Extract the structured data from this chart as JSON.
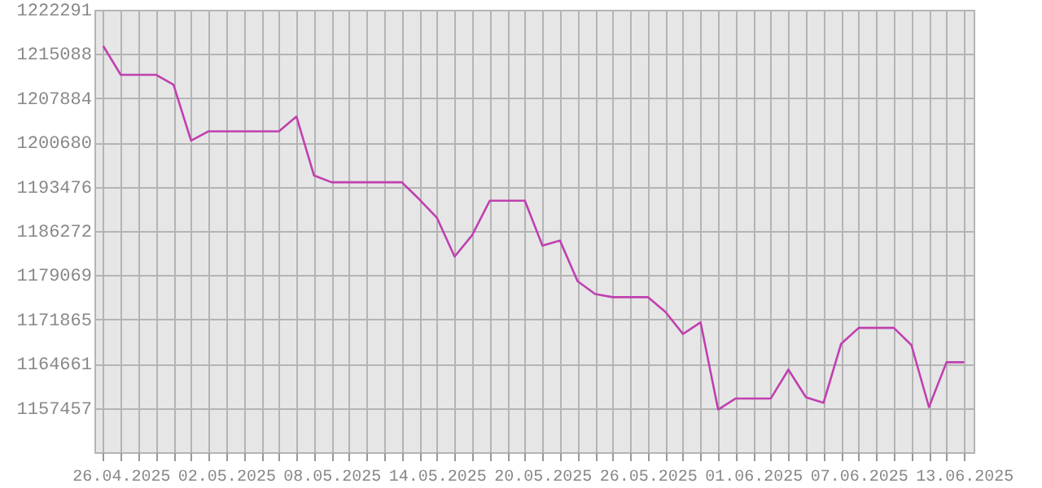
{
  "chart_data": {
    "type": "line",
    "x": [
      "2025-04-25",
      "2025-04-26",
      "2025-04-27",
      "2025-04-28",
      "2025-04-29",
      "2025-04-30",
      "2025-05-01",
      "2025-05-02",
      "2025-05-03",
      "2025-05-04",
      "2025-05-05",
      "2025-05-06",
      "2025-05-07",
      "2025-05-08",
      "2025-05-09",
      "2025-05-10",
      "2025-05-11",
      "2025-05-12",
      "2025-05-13",
      "2025-05-14",
      "2025-05-15",
      "2025-05-16",
      "2025-05-17",
      "2025-05-18",
      "2025-05-19",
      "2025-05-20",
      "2025-05-21",
      "2025-05-22",
      "2025-05-23",
      "2025-05-24",
      "2025-05-25",
      "2025-05-26",
      "2025-05-27",
      "2025-05-28",
      "2025-05-29",
      "2025-05-30",
      "2025-05-31",
      "2025-06-01",
      "2025-06-02",
      "2025-06-03",
      "2025-06-04",
      "2025-06-05",
      "2025-06-06",
      "2025-06-07",
      "2025-06-08",
      "2025-06-09",
      "2025-06-10",
      "2025-06-11",
      "2025-06-12",
      "2025-06-13"
    ],
    "series": [
      {
        "color": "#c040b0",
        "values": [
          1216400,
          1211700,
          1211700,
          1211700,
          1210100,
          1201000,
          1202500,
          1202500,
          1202500,
          1202500,
          1202500,
          1204900,
          1195300,
          1194200,
          1194200,
          1194200,
          1194200,
          1194200,
          1191400,
          1188400,
          1182100,
          1185600,
          1191200,
          1191200,
          1191200,
          1183900,
          1184700,
          1178100,
          1176000,
          1175500,
          1175500,
          1175500,
          1173100,
          1169500,
          1171400,
          1157200,
          1159000,
          1159000,
          1159000,
          1163700,
          1159200,
          1158300,
          1167900,
          1170500,
          1170500,
          1170500,
          1167700,
          1157600,
          1164900,
          1164900
        ]
      }
    ],
    "xlim": [
      "2025-04-24T12:00",
      "2025-06-13T13:00"
    ],
    "xticks": [
      {
        "value": "2025-04-25",
        "label": null
      },
      {
        "value": "2025-04-26",
        "label": "26.04.2025"
      },
      {
        "value": "2025-04-27",
        "label": null
      },
      {
        "value": "2025-04-28",
        "label": null
      },
      {
        "value": "2025-04-29",
        "label": null
      },
      {
        "value": "2025-04-30",
        "label": null
      },
      {
        "value": "2025-05-01",
        "label": null
      },
      {
        "value": "2025-05-02",
        "label": "02.05.2025"
      },
      {
        "value": "2025-05-03",
        "label": null
      },
      {
        "value": "2025-05-04",
        "label": null
      },
      {
        "value": "2025-05-05",
        "label": null
      },
      {
        "value": "2025-05-06",
        "label": null
      },
      {
        "value": "2025-05-07",
        "label": null
      },
      {
        "value": "2025-05-08",
        "label": "08.05.2025"
      },
      {
        "value": "2025-05-09",
        "label": null
      },
      {
        "value": "2025-05-10",
        "label": null
      },
      {
        "value": "2025-05-11",
        "label": null
      },
      {
        "value": "2025-05-12",
        "label": null
      },
      {
        "value": "2025-05-13",
        "label": null
      },
      {
        "value": "2025-05-14",
        "label": "14.05.2025"
      },
      {
        "value": "2025-05-15",
        "label": null
      },
      {
        "value": "2025-05-16",
        "label": null
      },
      {
        "value": "2025-05-17",
        "label": null
      },
      {
        "value": "2025-05-18",
        "label": null
      },
      {
        "value": "2025-05-19",
        "label": null
      },
      {
        "value": "2025-05-20",
        "label": "20.05.2025"
      },
      {
        "value": "2025-05-21",
        "label": null
      },
      {
        "value": "2025-05-22",
        "label": null
      },
      {
        "value": "2025-05-23",
        "label": null
      },
      {
        "value": "2025-05-24",
        "label": null
      },
      {
        "value": "2025-05-25",
        "label": null
      },
      {
        "value": "2025-05-26",
        "label": "26.05.2025"
      },
      {
        "value": "2025-05-27",
        "label": null
      },
      {
        "value": "2025-05-28",
        "label": null
      },
      {
        "value": "2025-05-29",
        "label": null
      },
      {
        "value": "2025-05-30",
        "label": null
      },
      {
        "value": "2025-05-31",
        "label": null
      },
      {
        "value": "2025-06-01",
        "label": "01.06.2025"
      },
      {
        "value": "2025-06-02",
        "label": null
      },
      {
        "value": "2025-06-03",
        "label": null
      },
      {
        "value": "2025-06-04",
        "label": null
      },
      {
        "value": "2025-06-05",
        "label": null
      },
      {
        "value": "2025-06-06",
        "label": null
      },
      {
        "value": "2025-06-07",
        "label": "07.06.2025"
      },
      {
        "value": "2025-06-08",
        "label": null
      },
      {
        "value": "2025-06-09",
        "label": null
      },
      {
        "value": "2025-06-10",
        "label": null
      },
      {
        "value": "2025-06-11",
        "label": null
      },
      {
        "value": "2025-06-12",
        "label": null
      },
      {
        "value": "2025-06-13",
        "label": "13.06.2025"
      }
    ],
    "ylim": [
      1150253,
      1222291
    ],
    "yticks": [
      1157457,
      1164661,
      1171865,
      1179069,
      1186272,
      1193476,
      1200680,
      1207884,
      1215088,
      1222291
    ],
    "grid": true,
    "line_style": "solid"
  }
}
